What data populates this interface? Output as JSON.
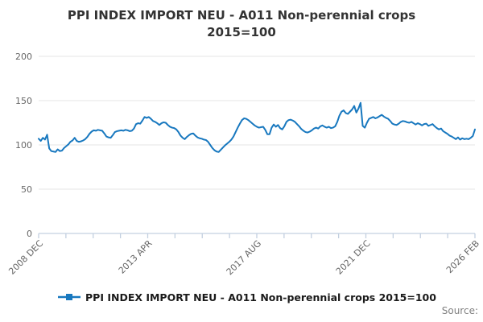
{
  "title": {
    "line1": "PPI INDEX IMPORT NEU - A011 Non-perennial crops",
    "line2": "2015=100"
  },
  "legend": {
    "label": "PPI INDEX IMPORT NEU - A011 Non-perennial crops 2015=100",
    "marker_icon": "line-with-square-marker"
  },
  "source": {
    "label": "Source:"
  },
  "colors": {
    "series": "#1878bf",
    "grid": "#e6e6e6",
    "axis": "#c3d0e0",
    "tick_label": "#666666",
    "title_text": "#333333",
    "legend_text": "#1a1a1a",
    "source_text": "#808080",
    "background": "#ffffff"
  },
  "chart_data": {
    "type": "line",
    "title": "PPI INDEX IMPORT NEU - A011 Non-perennial crops 2015=100",
    "xlabel": "",
    "ylabel": "",
    "ylim": [
      0,
      215
    ],
    "y_ticks": [
      0,
      50,
      100,
      150,
      200
    ],
    "grid": "horizontal-only",
    "legend_position": "bottom",
    "x_start": "2008-12",
    "x_end": "2026-02",
    "x_frequency": "monthly",
    "x_tick_labels": [
      "2008 DEC",
      "2013 APR",
      "2017 AUG",
      "2021 DEC",
      "2026 FEB"
    ],
    "minor_ticks_between_labels": 4,
    "series": [
      {
        "name": "PPI INDEX IMPORT NEU - A011 Non-perennial crops 2015=100",
        "values": [
          107,
          104.5,
          108,
          106,
          111.5,
          96,
          93,
          92.5,
          92,
          95,
          93,
          93.5,
          96.5,
          98.5,
          100.5,
          103.5,
          105,
          108,
          104.5,
          103.5,
          104,
          105,
          106.5,
          109,
          112.5,
          115,
          116.5,
          116,
          117,
          116.5,
          116,
          113,
          109.5,
          108.5,
          108,
          111,
          114.5,
          115.5,
          116,
          116.5,
          116,
          117,
          116.5,
          115.5,
          116,
          118.5,
          123.5,
          124.5,
          124,
          127.5,
          131.5,
          130.5,
          131.5,
          129.5,
          127,
          126,
          124.5,
          122.5,
          124.5,
          125.5,
          125,
          122.5,
          120.5,
          119.5,
          119,
          117.5,
          114.5,
          110.5,
          108,
          106.5,
          109,
          111,
          112.5,
          113,
          110.5,
          108.5,
          107.5,
          107,
          106,
          105.5,
          103.5,
          100,
          96.5,
          94,
          92.5,
          92,
          94.5,
          97,
          99.5,
          101.5,
          103.5,
          106,
          109.5,
          114.5,
          119.5,
          124,
          128,
          130,
          129.5,
          128,
          126,
          124,
          122,
          120.5,
          119.5,
          120,
          120.5,
          117,
          112,
          112,
          119.5,
          123,
          120.5,
          122.5,
          119,
          117.5,
          121,
          126,
          128,
          128.5,
          127.5,
          126,
          123.5,
          121,
          118,
          116,
          114.5,
          114,
          115,
          116.5,
          118.5,
          119.5,
          118.5,
          121,
          122,
          120.5,
          119.5,
          120.5,
          119,
          119.5,
          121,
          126,
          133,
          137.5,
          139,
          136,
          135,
          137.5,
          140,
          144,
          136.5,
          141,
          147.5,
          121.5,
          119.5,
          125,
          129.5,
          130.5,
          131.5,
          130,
          131,
          132.5,
          134,
          132,
          130.5,
          129.5,
          127,
          124,
          123,
          122.5,
          124,
          126,
          127,
          126.5,
          125.5,
          125,
          126,
          124.5,
          123,
          124.5,
          123.5,
          122,
          123.5,
          124,
          121.5,
          122.5,
          123.5,
          121,
          119,
          117.5,
          118.5,
          115.5,
          114,
          112.5,
          110.5,
          109.5,
          108,
          106.5,
          108.5,
          106,
          107.5,
          106.5,
          107,
          106.5,
          108,
          110,
          117.5
        ]
      }
    ]
  }
}
